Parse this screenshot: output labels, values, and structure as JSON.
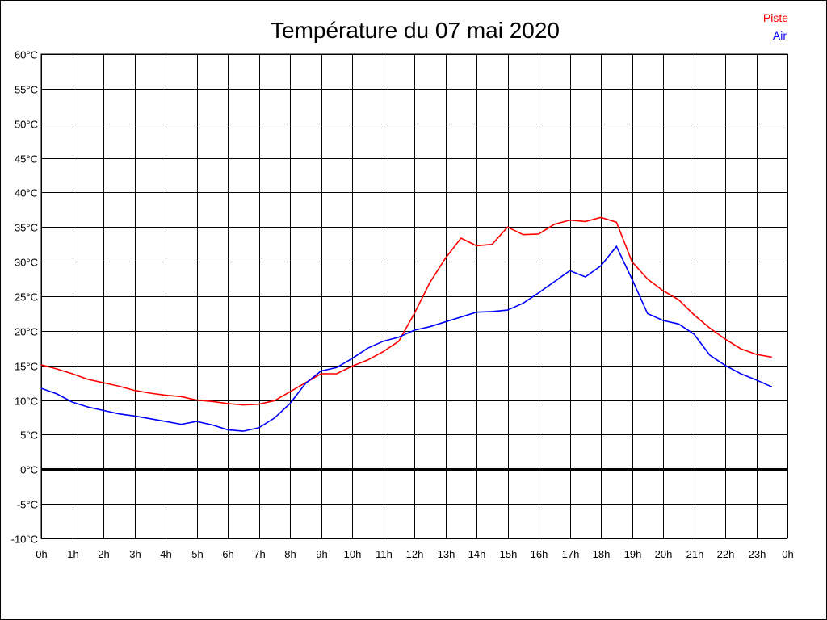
{
  "chart_data": {
    "type": "line",
    "title": "Température du 07 mai 2020",
    "xlabel": "",
    "ylabel": "",
    "xlim": [
      0,
      24
    ],
    "ylim": [
      -10,
      60
    ],
    "grid": true,
    "legend_placement": "top-right",
    "y_ticks": [
      "60°C",
      "55°C",
      "50°C",
      "45°C",
      "40°C",
      "35°C",
      "30°C",
      "25°C",
      "20°C",
      "15°C",
      "10°C",
      "5°C",
      "0°C",
      "-5°C",
      "-10°C"
    ],
    "y_tick_values": [
      60,
      55,
      50,
      45,
      40,
      35,
      30,
      25,
      20,
      15,
      10,
      5,
      0,
      -5,
      -10
    ],
    "x_ticks": [
      "0h",
      "1h",
      "2h",
      "3h",
      "4h",
      "5h",
      "6h",
      "7h",
      "8h",
      "9h",
      "10h",
      "11h",
      "12h",
      "13h",
      "14h",
      "15h",
      "16h",
      "17h",
      "18h",
      "19h",
      "20h",
      "21h",
      "22h",
      "23h",
      "0h"
    ],
    "x": [
      0,
      0.5,
      1,
      1.5,
      2,
      2.5,
      3,
      3.5,
      4,
      4.5,
      5,
      5.5,
      6,
      6.5,
      7,
      7.5,
      8,
      8.5,
      9,
      9.5,
      10,
      10.5,
      11,
      11.5,
      12,
      12.5,
      13,
      13.5,
      14,
      14.5,
      15,
      15.5,
      16,
      16.5,
      17,
      17.5,
      18,
      18.5,
      19,
      19.5,
      20,
      20.5,
      21,
      21.5,
      22,
      22.5,
      23,
      23.5
    ],
    "series": [
      {
        "name": "Piste",
        "color": "#ff0000",
        "values": [
          15.1,
          14.5,
          13.8,
          13.0,
          12.5,
          12.0,
          11.4,
          11.0,
          10.7,
          10.5,
          10.0,
          9.8,
          9.5,
          9.3,
          9.4,
          9.9,
          11.2,
          12.5,
          13.8,
          13.8,
          14.9,
          15.8,
          17.0,
          18.5,
          22.5,
          27.0,
          30.5,
          33.4,
          32.3,
          32.5,
          35.0,
          33.9,
          34.0,
          35.4,
          36.0,
          35.8,
          36.4,
          35.7,
          30.0,
          27.5,
          25.8,
          24.5,
          22.3,
          20.4,
          18.8,
          17.4,
          16.6,
          16.2
        ]
      },
      {
        "name": "Air",
        "color": "#0000ff",
        "values": [
          11.7,
          10.9,
          9.7,
          9.0,
          8.5,
          8.0,
          7.7,
          7.3,
          6.9,
          6.5,
          6.9,
          6.4,
          5.7,
          5.5,
          6.0,
          7.4,
          9.5,
          12.4,
          14.2,
          14.7,
          16.0,
          17.5,
          18.5,
          19.1,
          20.1,
          20.6,
          21.3,
          22.0,
          22.7,
          22.8,
          23.0,
          24.0,
          25.5,
          27.1,
          28.7,
          27.8,
          29.4,
          32.2,
          27.5,
          22.5,
          21.5,
          21.0,
          19.5,
          16.5,
          15.0,
          13.8,
          12.9,
          11.9
        ]
      }
    ]
  }
}
